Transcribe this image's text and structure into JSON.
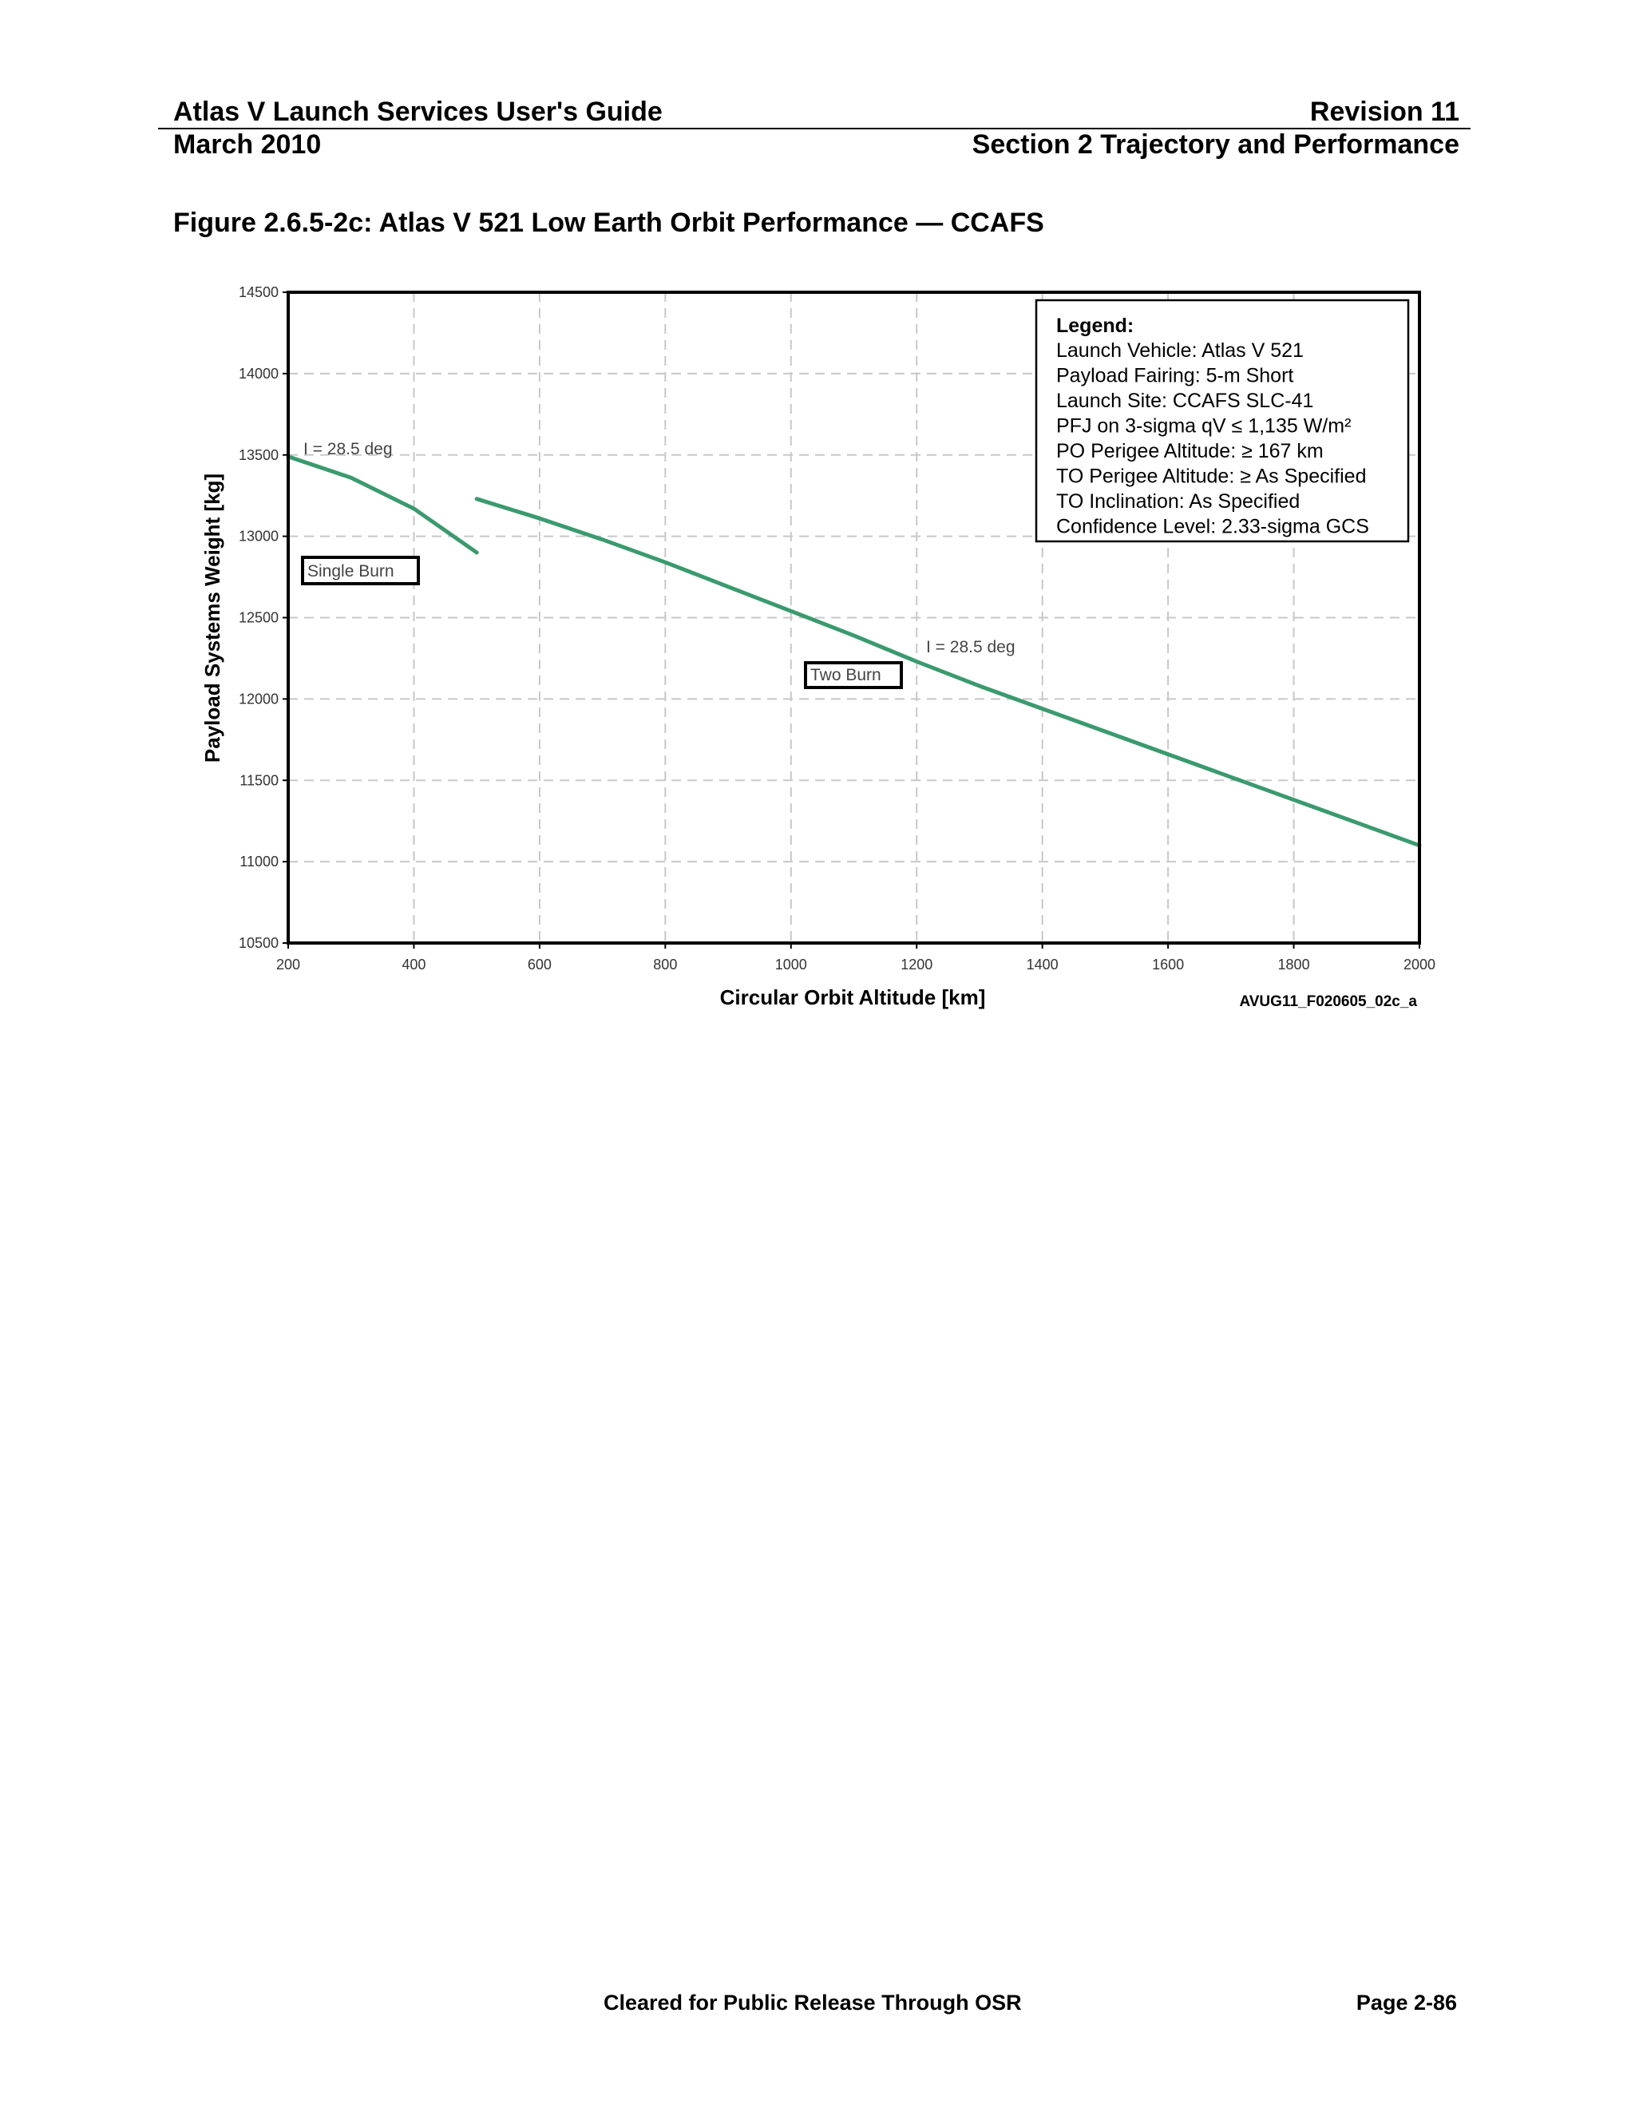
{
  "header": {
    "title": "Atlas V Launch Services User's Guide",
    "revision": "Revision 11",
    "date": "March 2010",
    "section": "Section 2 Trajectory and Performance"
  },
  "figure": {
    "caption": "Figure 2.6.5-2c: Atlas V 521 Low Earth Orbit Performance — CCAFS",
    "figure_id": "AVUG11_F020605_02c_a"
  },
  "chart_data": {
    "type": "line",
    "xlabel": "Circular Orbit Altitude [km]",
    "ylabel": "Payload Systems Weight [kg]",
    "xlim": [
      200,
      2000
    ],
    "ylim": [
      10500,
      14500
    ],
    "x_ticks": [
      200,
      400,
      600,
      800,
      1000,
      1200,
      1400,
      1600,
      1800,
      2000
    ],
    "y_ticks": [
      10500,
      11000,
      11500,
      12000,
      12500,
      13000,
      13500,
      14000,
      14500
    ],
    "grid": true,
    "line_color": "#3a9a6e",
    "series": [
      {
        "name": "Single Burn",
        "inclination_label": "I = 28.5 deg",
        "x": [
          200,
          300,
          400,
          500
        ],
        "y": [
          13490,
          13360,
          13170,
          12900
        ]
      },
      {
        "name": "Two Burn",
        "inclination_label": "I = 28.5 deg",
        "x": [
          500,
          600,
          700,
          800,
          900,
          1000,
          1100,
          1200,
          1300,
          1400,
          1500,
          1600,
          1700,
          1800,
          1900,
          2000
        ],
        "y": [
          13230,
          13110,
          12980,
          12840,
          12690,
          12540,
          12390,
          12230,
          12080,
          11940,
          11800,
          11660,
          11520,
          11380,
          11240,
          11100
        ]
      }
    ],
    "legend": {
      "position": "top-right",
      "title": "Legend:",
      "lines": [
        "Launch Vehicle: Atlas V 521",
        "Payload Fairing: 5-m Short",
        "Launch Site: CCAFS SLC-41",
        "PFJ on 3-sigma qV ≤ 1,135 W/m²",
        "PO Perigee Altitude: ≥ 167 km",
        "TO Perigee Altitude: ≥ As Specified",
        "TO Inclination:  As Specified",
        "Confidence Level: 2.33-sigma GCS"
      ]
    }
  },
  "footer": {
    "release": "Cleared for Public Release Through OSR",
    "page": "Page 2-86"
  }
}
